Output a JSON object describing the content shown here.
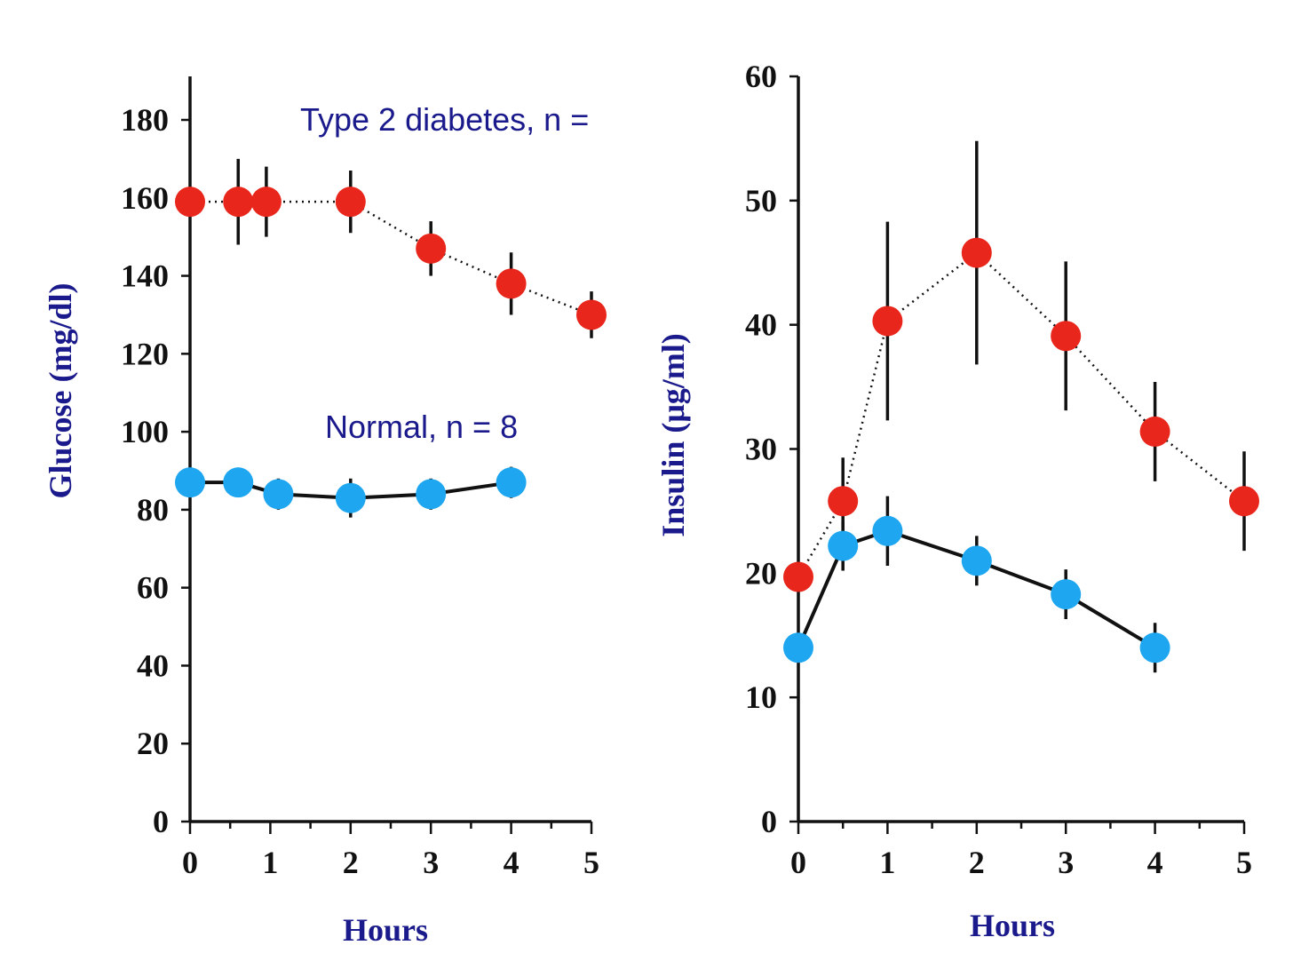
{
  "chart_data": [
    {
      "type": "line",
      "xlabel": "Hours",
      "ylabel": "Glucose (mg/dl)",
      "xlim": [
        0,
        5
      ],
      "ylim": [
        0,
        190
      ],
      "xticks": [
        "0",
        "1",
        "2",
        "3",
        "4",
        "5"
      ],
      "yticks": [
        "0",
        "20",
        "40",
        "60",
        "80",
        "100",
        "120",
        "140",
        "160",
        "180"
      ],
      "annotations": [
        "Type 2 diabetes, n =",
        "Normal, n = 8"
      ],
      "series": [
        {
          "color": "#e8261c",
          "line": "dotted",
          "x": [
            0,
            0.6,
            0.95,
            2,
            3,
            4,
            5
          ],
          "y": [
            159,
            159,
            159,
            159,
            147,
            138,
            130
          ],
          "error": [
            0,
            11,
            9,
            8,
            7,
            8,
            6
          ]
        },
        {
          "color": "#1ea7f0",
          "line": "solid",
          "x": [
            0,
            0.6,
            1.1,
            2,
            3,
            4
          ],
          "y": [
            87,
            87,
            84,
            83,
            84,
            87
          ],
          "error": [
            3,
            3,
            4,
            5,
            4,
            4
          ]
        }
      ]
    },
    {
      "type": "line",
      "xlabel": "Hours",
      "ylabel": "Insulin (μg/ml)",
      "xlim": [
        0,
        5
      ],
      "ylim": [
        0,
        60
      ],
      "xticks": [
        "0",
        "1",
        "2",
        "3",
        "4",
        "5"
      ],
      "yticks": [
        "0",
        "10",
        "20",
        "30",
        "40",
        "50",
        "60"
      ],
      "series": [
        {
          "color": "#e8261c",
          "line": "dotted",
          "x": [
            0,
            0.5,
            1,
            2,
            3,
            4,
            5
          ],
          "y": [
            19.7,
            25.8,
            40.3,
            45.8,
            39.1,
            31.4,
            25.8
          ],
          "error": [
            0,
            3.5,
            8,
            9,
            6,
            4,
            4
          ]
        },
        {
          "color": "#1ea7f0",
          "line": "solid",
          "x": [
            0,
            0.5,
            1,
            2,
            3,
            4
          ],
          "y": [
            14,
            22.2,
            23.4,
            21,
            18.3,
            14
          ],
          "error": [
            0,
            2,
            2.8,
            2,
            2,
            2
          ]
        }
      ]
    }
  ]
}
